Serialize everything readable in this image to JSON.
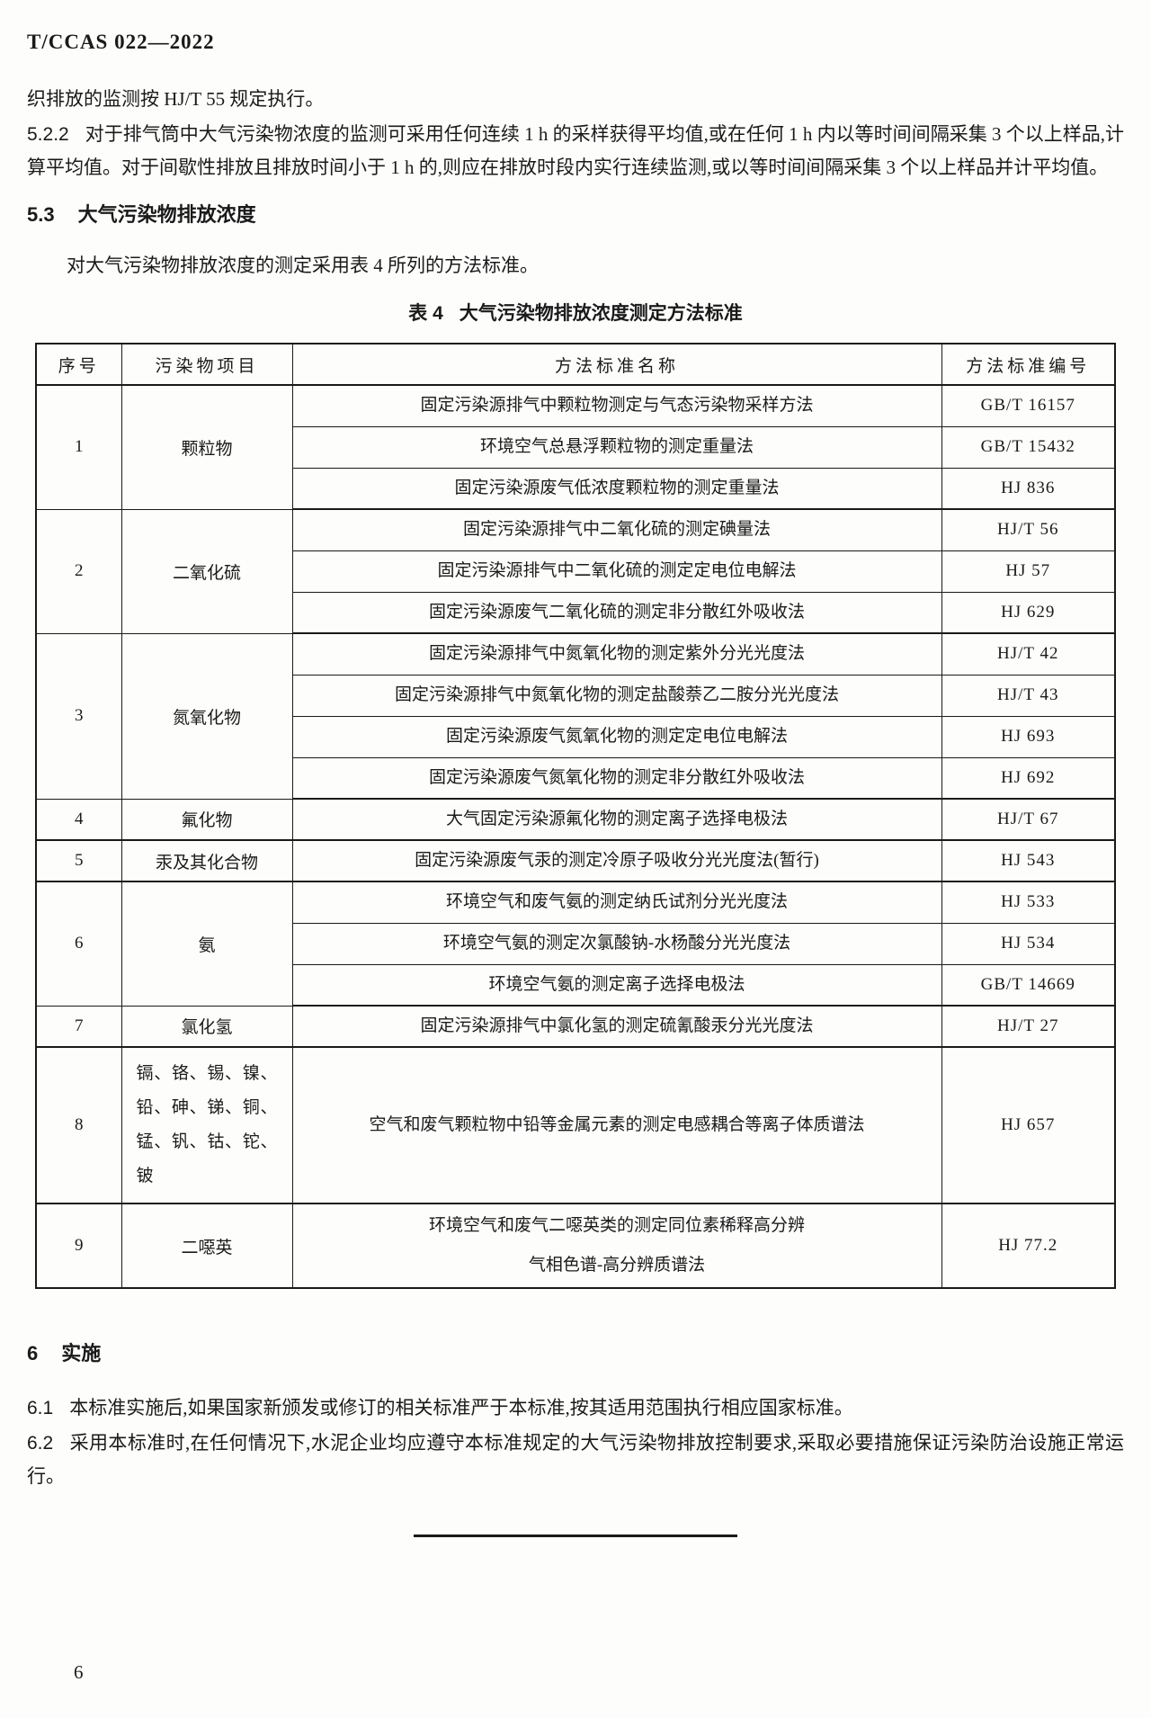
{
  "doc": {
    "header": "T/CCAS 022—2022",
    "page_number": "6"
  },
  "intro": {
    "continuation_line": "织排放的监测按 HJ/T 55 规定执行。",
    "clause_522_num": "5.2.2",
    "clause_522_text": "对于排气筒中大气污染物浓度的监测可采用任何连续 1 h 的采样获得平均值,或在任何 1 h 内以等时间间隔采集 3 个以上样品,计算平均值。对于间歇性排放且排放时间小于 1 h 的,则应在排放时段内实行连续监测,或以等时间间隔采集 3 个以上样品并计平均值。"
  },
  "section_53": {
    "num": "5.3",
    "title": "大气污染物排放浓度",
    "para": "对大气污染物排放浓度的测定采用表 4 所列的方法标准。"
  },
  "table": {
    "caption_label": "表 4",
    "caption_title": "大气污染物排放浓度测定方法标准",
    "headers": [
      "序号",
      "污染物项目",
      "方法标准名称",
      "方法标准编号"
    ],
    "groups": [
      {
        "no": "1",
        "pollutant": "颗粒物",
        "methods": [
          {
            "name": "固定污染源排气中颗粒物测定与气态污染物采样方法",
            "code": "GB/T 16157"
          },
          {
            "name": "环境空气总悬浮颗粒物的测定重量法",
            "code": "GB/T 15432"
          },
          {
            "name": "固定污染源废气低浓度颗粒物的测定重量法",
            "code": "HJ 836"
          }
        ]
      },
      {
        "no": "2",
        "pollutant": "二氧化硫",
        "methods": [
          {
            "name": "固定污染源排气中二氧化硫的测定碘量法",
            "code": "HJ/T 56"
          },
          {
            "name": "固定污染源排气中二氧化硫的测定定电位电解法",
            "code": "HJ 57"
          },
          {
            "name": "固定污染源废气二氧化硫的测定非分散红外吸收法",
            "code": "HJ 629"
          }
        ]
      },
      {
        "no": "3",
        "pollutant": "氮氧化物",
        "methods": [
          {
            "name": "固定污染源排气中氮氧化物的测定紫外分光光度法",
            "code": "HJ/T 42"
          },
          {
            "name": "固定污染源排气中氮氧化物的测定盐酸萘乙二胺分光光度法",
            "code": "HJ/T 43"
          },
          {
            "name": "固定污染源废气氮氧化物的测定定电位电解法",
            "code": "HJ 693"
          },
          {
            "name": "固定污染源废气氮氧化物的测定非分散红外吸收法",
            "code": "HJ 692"
          }
        ]
      },
      {
        "no": "4",
        "pollutant": "氟化物",
        "methods": [
          {
            "name": "大气固定污染源氟化物的测定离子选择电极法",
            "code": "HJ/T 67"
          }
        ]
      },
      {
        "no": "5",
        "pollutant": "汞及其化合物",
        "methods": [
          {
            "name": "固定污染源废气汞的测定冷原子吸收分光光度法(暂行)",
            "code": "HJ 543"
          }
        ]
      },
      {
        "no": "6",
        "pollutant": "氨",
        "methods": [
          {
            "name": "环境空气和废气氨的测定纳氏试剂分光光度法",
            "code": "HJ 533"
          },
          {
            "name": "环境空气氨的测定次氯酸钠-水杨酸分光光度法",
            "code": "HJ 534"
          },
          {
            "name": "环境空气氨的测定离子选择电极法",
            "code": "GB/T 14669"
          }
        ]
      },
      {
        "no": "7",
        "pollutant": "氯化氢",
        "methods": [
          {
            "name": "固定污染源排气中氯化氢的测定硫氰酸汞分光光度法",
            "code": "HJ/T 27"
          }
        ]
      },
      {
        "no": "8",
        "pollutant": "镉、铬、锡、镍、铅、砷、锑、铜、锰、钒、钴、铊、铍",
        "pollutant_wrap": true,
        "tall": true,
        "methods": [
          {
            "name": "空气和废气颗粒物中铅等金属元素的测定电感耦合等离子体质谱法",
            "code": "HJ 657"
          }
        ]
      },
      {
        "no": "9",
        "pollutant": "二噁英",
        "two_line": true,
        "methods": [
          {
            "name": "环境空气和废气二噁英类的测定同位素稀释高分辨\n气相色谱-高分辨质谱法",
            "code": "HJ 77.2"
          }
        ]
      }
    ]
  },
  "section_6": {
    "num": "6",
    "title": "实施",
    "clause_61_num": "6.1",
    "clause_61_text": "本标准实施后,如果国家新颁发或修订的相关标准严于本标准,按其适用范围执行相应国家标准。",
    "clause_62_num": "6.2",
    "clause_62_text": "采用本标准时,在任何情况下,水泥企业均应遵守本标准规定的大气污染物排放控制要求,采取必要措施保证污染防治设施正常运行。"
  }
}
